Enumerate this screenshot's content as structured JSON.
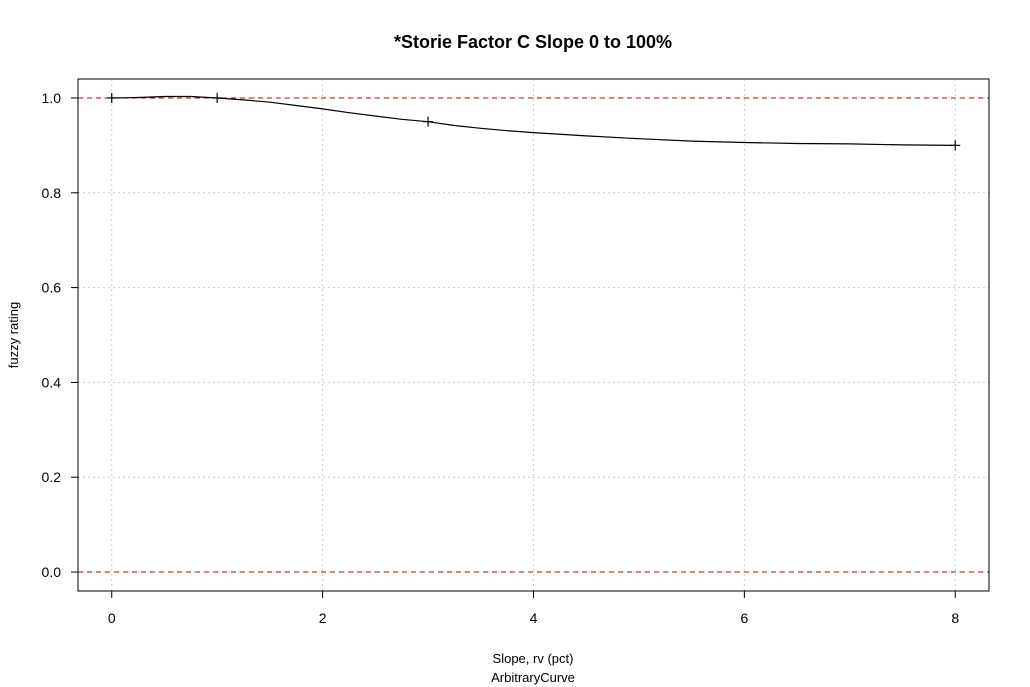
{
  "chart_data": {
    "type": "line",
    "title": "*Storie Factor C Slope 0 to 100%",
    "xlabel": "Slope, rv (pct)",
    "sublabel": "ArbitraryCurve",
    "ylabel": "fuzzy rating",
    "xlim": [
      -0.32,
      8.32
    ],
    "ylim": [
      -0.04,
      1.04
    ],
    "x_ticks": [
      0,
      2,
      4,
      6,
      8
    ],
    "y_ticks": [
      0.0,
      0.2,
      0.4,
      0.6,
      0.8,
      1.0
    ],
    "x_tick_labels": [
      "0",
      "2",
      "4",
      "6",
      "8"
    ],
    "y_tick_labels": [
      "0.0",
      "0.2",
      "0.4",
      "0.6",
      "0.8",
      "1.0"
    ],
    "grid": true,
    "reference_lines": [
      0,
      1
    ],
    "reference_color": "#cc0000",
    "line_color": "#000000",
    "grid_color": "#cccccc",
    "series": [
      {
        "x": [
          0,
          0.25,
          0.5,
          0.75,
          1.0,
          1.25,
          1.5,
          1.75,
          2.0,
          2.25,
          2.5,
          2.75,
          3.0,
          3.25,
          3.5,
          3.75,
          4.0,
          4.5,
          5.0,
          5.5,
          6.0,
          6.5,
          7.0,
          7.5,
          8.0
        ],
        "y": [
          1.0,
          1.001,
          1.003,
          1.003,
          1.0,
          0.996,
          0.991,
          0.984,
          0.977,
          0.969,
          0.962,
          0.955,
          0.95,
          0.942,
          0.936,
          0.931,
          0.927,
          0.92,
          0.914,
          0.909,
          0.906,
          0.904,
          0.903,
          0.901,
          0.9
        ]
      }
    ],
    "points": {
      "x": [
        0,
        1,
        3,
        8
      ],
      "y": [
        1.0,
        1.0,
        0.95,
        0.9
      ]
    }
  }
}
